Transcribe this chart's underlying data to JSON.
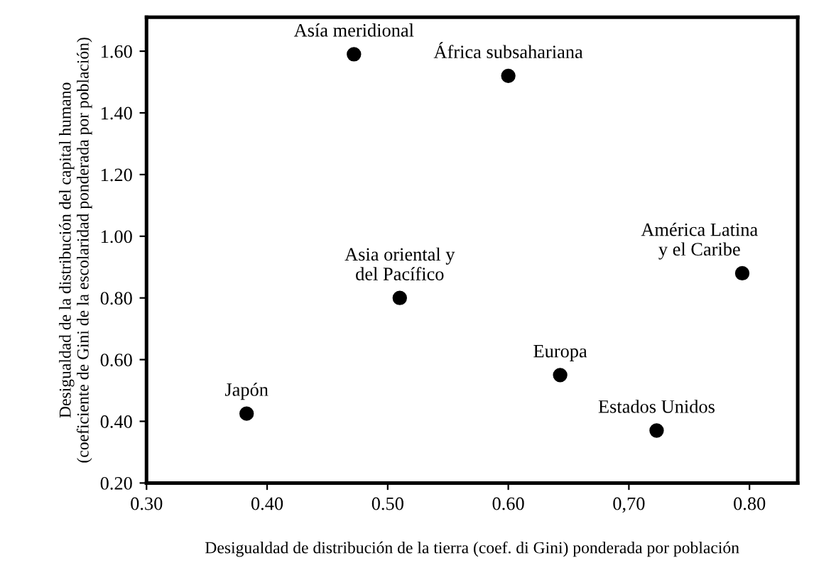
{
  "chart_data": {
    "type": "scatter",
    "xlabel": "Desigualdad de distribución de la tierra (coef. di Gini) ponderada por población",
    "ylabel": "Desigualdad de la distribución del capital humano\n(coeficiente de Gini de la escolaridad ponderada por población)",
    "x": [
      0.472,
      0.6,
      0.51,
      0.794,
      0.643,
      0.723,
      0.383
    ],
    "series": [
      {
        "color": "#000000",
        "values": [
          1.59,
          1.52,
          0.8,
          0.88,
          0.55,
          0.37,
          0.425
        ]
      }
    ],
    "marker": "circle",
    "annotations": [
      {
        "text": "Asía meridional",
        "x": 0.472,
        "y": 1.59
      },
      {
        "text": "África subsahariana",
        "x": 0.6,
        "y": 1.52
      },
      {
        "text": "Asia oriental y\ndel Pacífico",
        "x": 0.51,
        "y": 0.8
      },
      {
        "text": "América Latina\ny el Caribe",
        "x": 0.794,
        "y": 0.88
      },
      {
        "text": "Europa",
        "x": 0.643,
        "y": 0.55
      },
      {
        "text": "Estados Unidos",
        "x": 0.723,
        "y": 0.37
      },
      {
        "text": "Japón",
        "x": 0.383,
        "y": 0.425
      }
    ],
    "xlim": [
      0.3,
      0.84
    ],
    "ylim": [
      0.2,
      1.71
    ],
    "xticks": [
      {
        "value": 0.3,
        "label": "0.30"
      },
      {
        "value": 0.4,
        "label": "0.40"
      },
      {
        "value": 0.5,
        "label": "0.50"
      },
      {
        "value": 0.6,
        "label": "0.60"
      },
      {
        "value": 0.7,
        "label": "0,70"
      },
      {
        "value": 0.8,
        "label": "0.80"
      }
    ],
    "yticks": [
      {
        "value": 0.2,
        "label": "0.20"
      },
      {
        "value": 0.4,
        "label": "0.40"
      },
      {
        "value": 0.6,
        "label": "0.60"
      },
      {
        "value": 0.8,
        "label": "0.80"
      },
      {
        "value": 1.0,
        "label": "1.00"
      },
      {
        "value": 1.2,
        "label": "1.20"
      },
      {
        "value": 1.4,
        "label": "1.40"
      },
      {
        "value": 1.6,
        "label": "1.60"
      }
    ],
    "grid": false,
    "legend": false
  }
}
